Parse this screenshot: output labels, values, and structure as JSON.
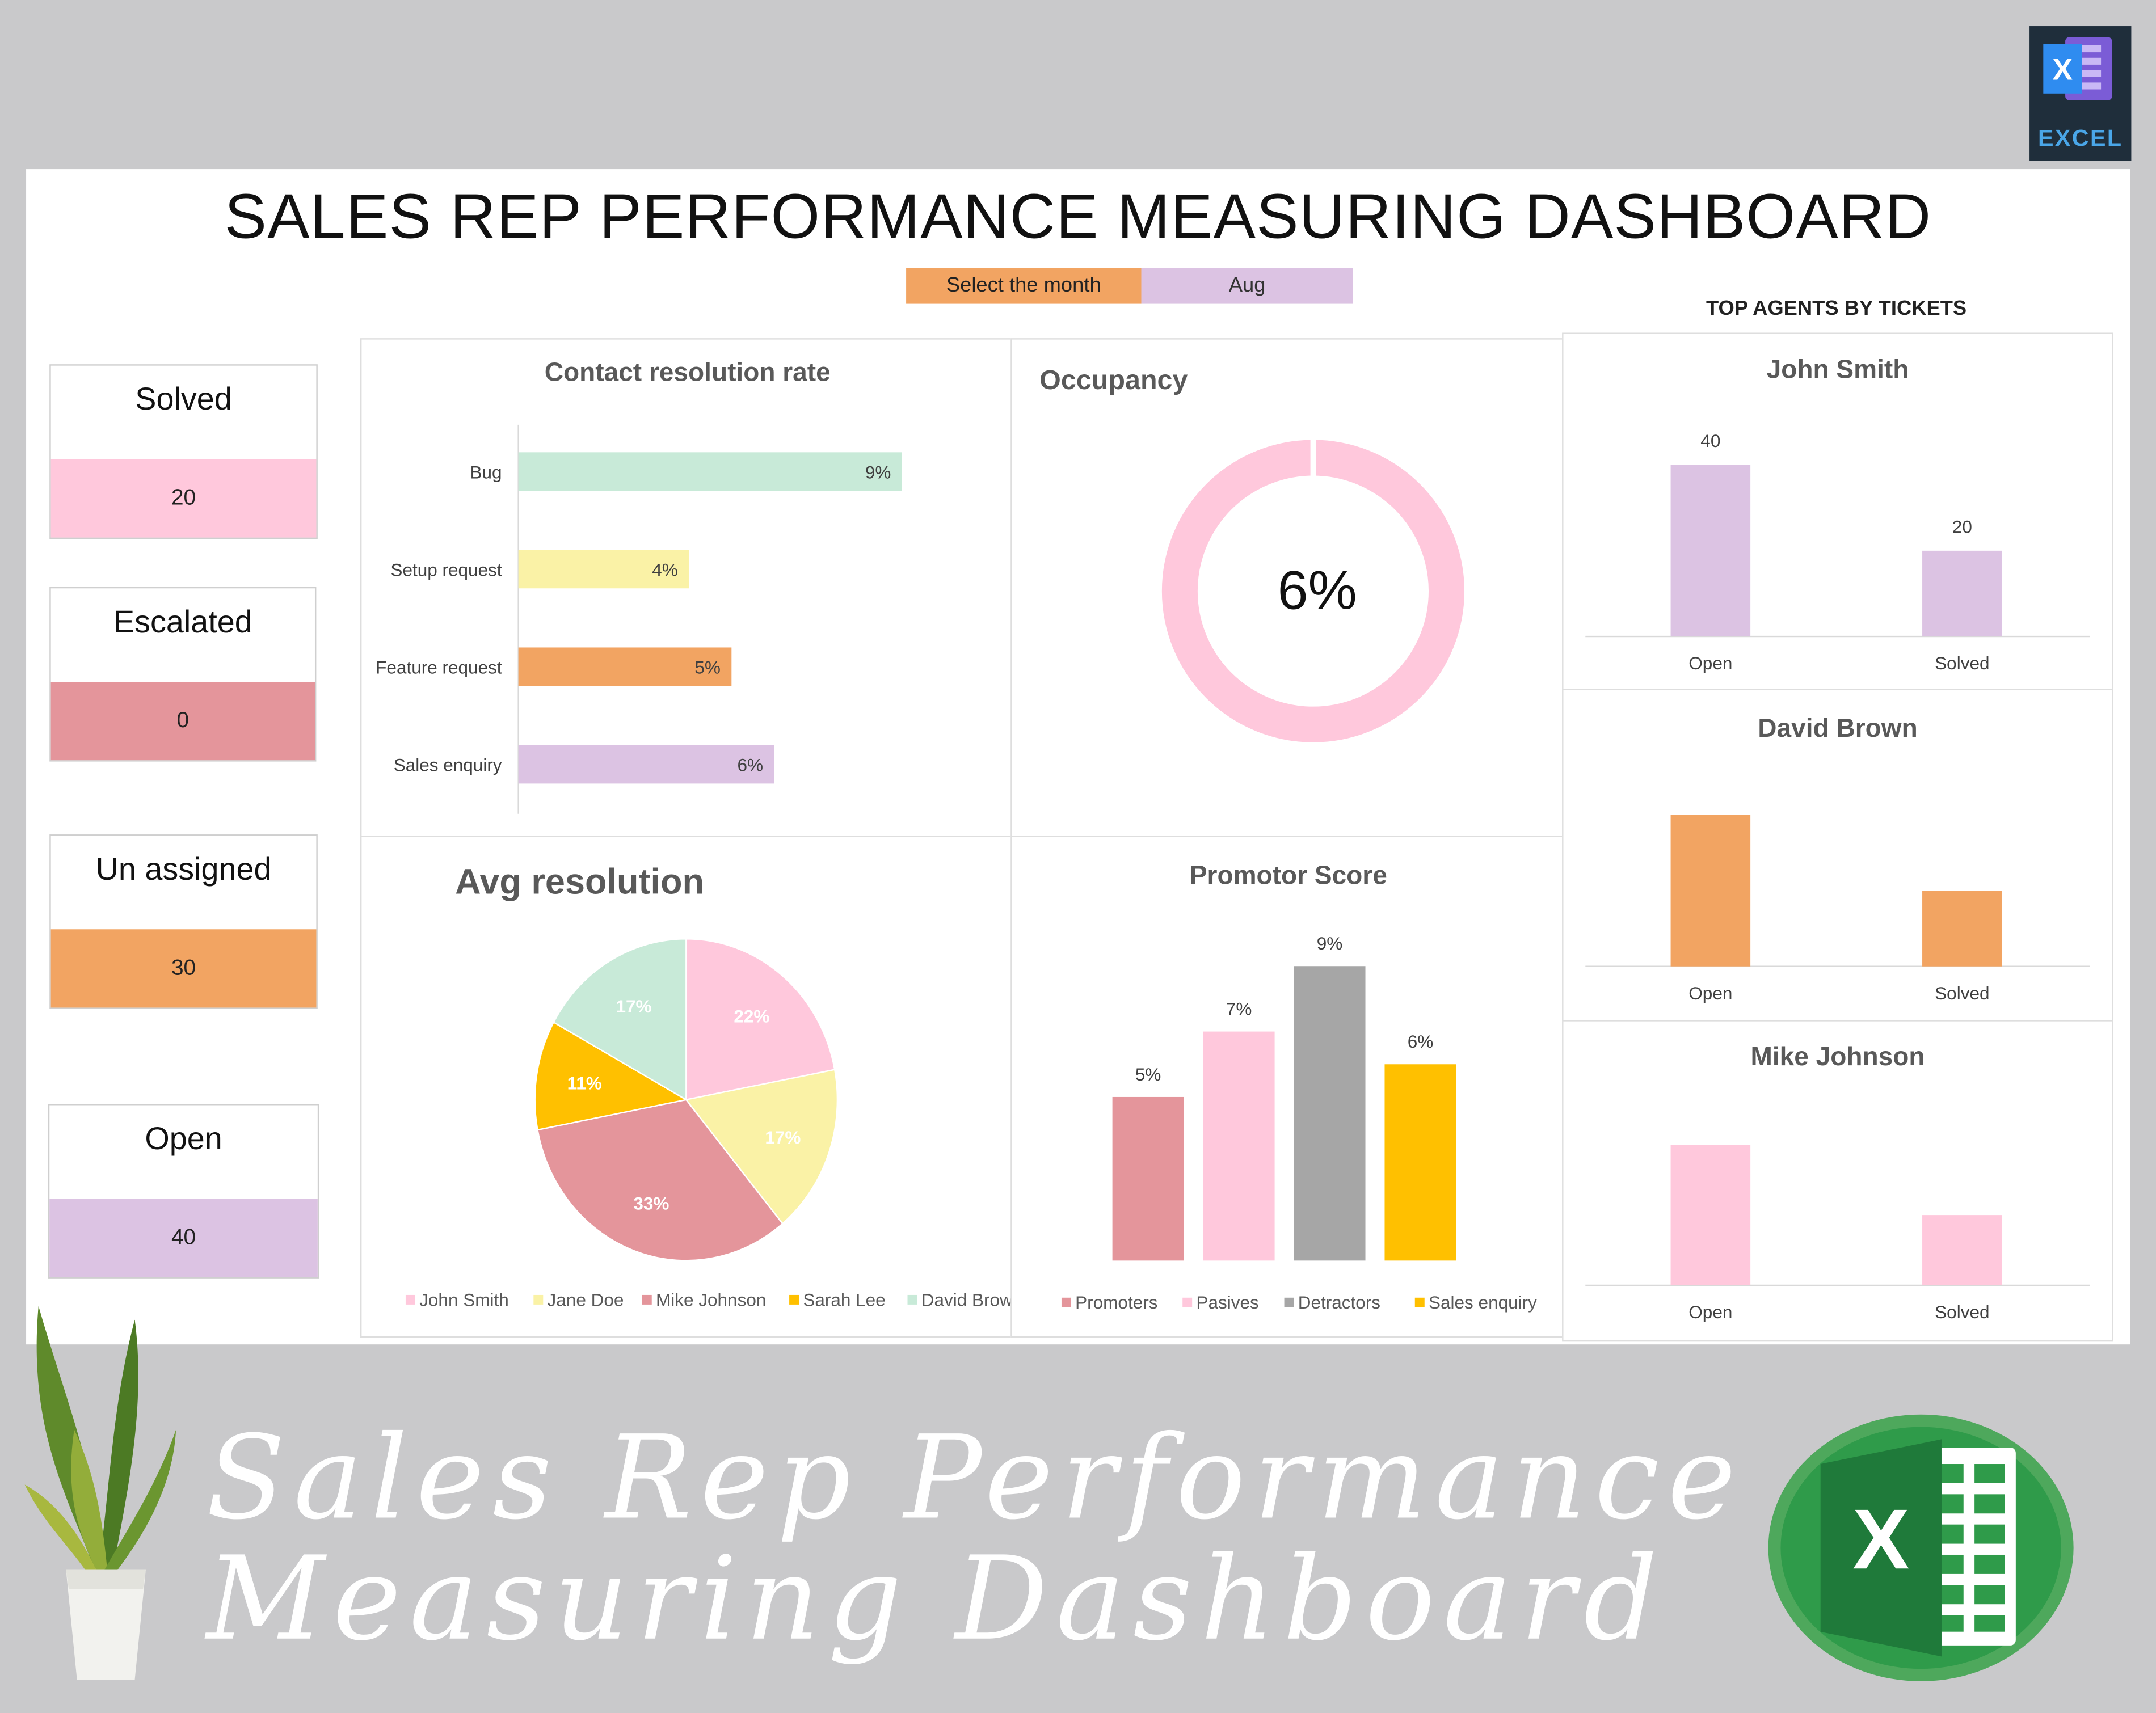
{
  "title": "SALES REP PERFORMANCE MEASURING DASHBOARD",
  "month_selector": {
    "label": "Select the month",
    "value": "Aug"
  },
  "kpis": [
    {
      "label": "Solved",
      "value": "20",
      "color": "#ffc8dc"
    },
    {
      "label": "Escalated",
      "value": "0",
      "color": "#e4959b"
    },
    {
      "label": "Un assigned",
      "value": "30",
      "color": "#f2a462"
    },
    {
      "label": "Open",
      "value": "40",
      "color": "#dcc3e3"
    }
  ],
  "top_agents_title": "TOP AGENTS BY TICKETS",
  "banner_title_line1": "Sales Rep Performance",
  "banner_title_line2": "Measuring Dashboard",
  "badge_text": "EXCEL",
  "chart_data": [
    {
      "id": "contact-resolution",
      "type": "bar",
      "orientation": "horizontal",
      "title": "Contact resolution rate",
      "categories": [
        "Bug",
        "Setup request",
        "Feature request",
        "Sales enquiry"
      ],
      "values": [
        9,
        4,
        5,
        6
      ],
      "labels": [
        "9%",
        "4%",
        "5%",
        "6%"
      ],
      "colors": [
        "#c8ead8",
        "#faf2a6",
        "#f2a462",
        "#dcc3e3"
      ],
      "xlim": [
        0,
        12
      ]
    },
    {
      "id": "occupancy",
      "type": "pie",
      "variant": "donut",
      "title": "Occupancy",
      "values": [
        6
      ],
      "label": "6%",
      "color": "#ffc8dc"
    },
    {
      "id": "avg-resolution",
      "type": "pie",
      "title": "Avg resolution",
      "categories": [
        "John Smith",
        "Jane Doe",
        "Mike Johnson",
        "Sarah Lee",
        "David Brown"
      ],
      "values": [
        22,
        17,
        33,
        11,
        17
      ],
      "labels": [
        "22%",
        "17%",
        "33%",
        "11%",
        "17%"
      ],
      "colors": [
        "#ffc8dc",
        "#faf2a6",
        "#e4959b",
        "#ffc000",
        "#c8ead8"
      ],
      "legend": "bottom"
    },
    {
      "id": "promotor-score",
      "type": "bar",
      "title": "Promotor Score",
      "categories": [
        "Promoters",
        "Pasives",
        "Detractors",
        "Sales enquiry"
      ],
      "values": [
        5,
        7,
        9,
        6
      ],
      "labels": [
        "5%",
        "7%",
        "9%",
        "6%"
      ],
      "colors": [
        "#e4959b",
        "#ffc8dc",
        "#a6a6a6",
        "#ffc000"
      ],
      "ylim": [
        0,
        10
      ],
      "legend": "bottom"
    },
    {
      "id": "agent-john",
      "type": "bar",
      "title": "John Smith",
      "categories": [
        "Open",
        "Solved"
      ],
      "values": [
        40,
        20
      ],
      "labels": [
        "40",
        "20"
      ],
      "color": "#dcc3e3",
      "ylim": [
        0,
        50
      ]
    },
    {
      "id": "agent-david",
      "type": "bar",
      "title": "David Brown",
      "categories": [
        "Open",
        "Solved"
      ],
      "values": [
        40,
        20
      ],
      "labels": [],
      "color": "#f2a462",
      "ylim": [
        0,
        45
      ]
    },
    {
      "id": "agent-mike",
      "type": "bar",
      "title": "Mike Johnson",
      "categories": [
        "Open",
        "Solved"
      ],
      "values": [
        40,
        20
      ],
      "labels": [],
      "color": "#ffc8dc",
      "ylim": [
        0,
        45
      ]
    }
  ]
}
